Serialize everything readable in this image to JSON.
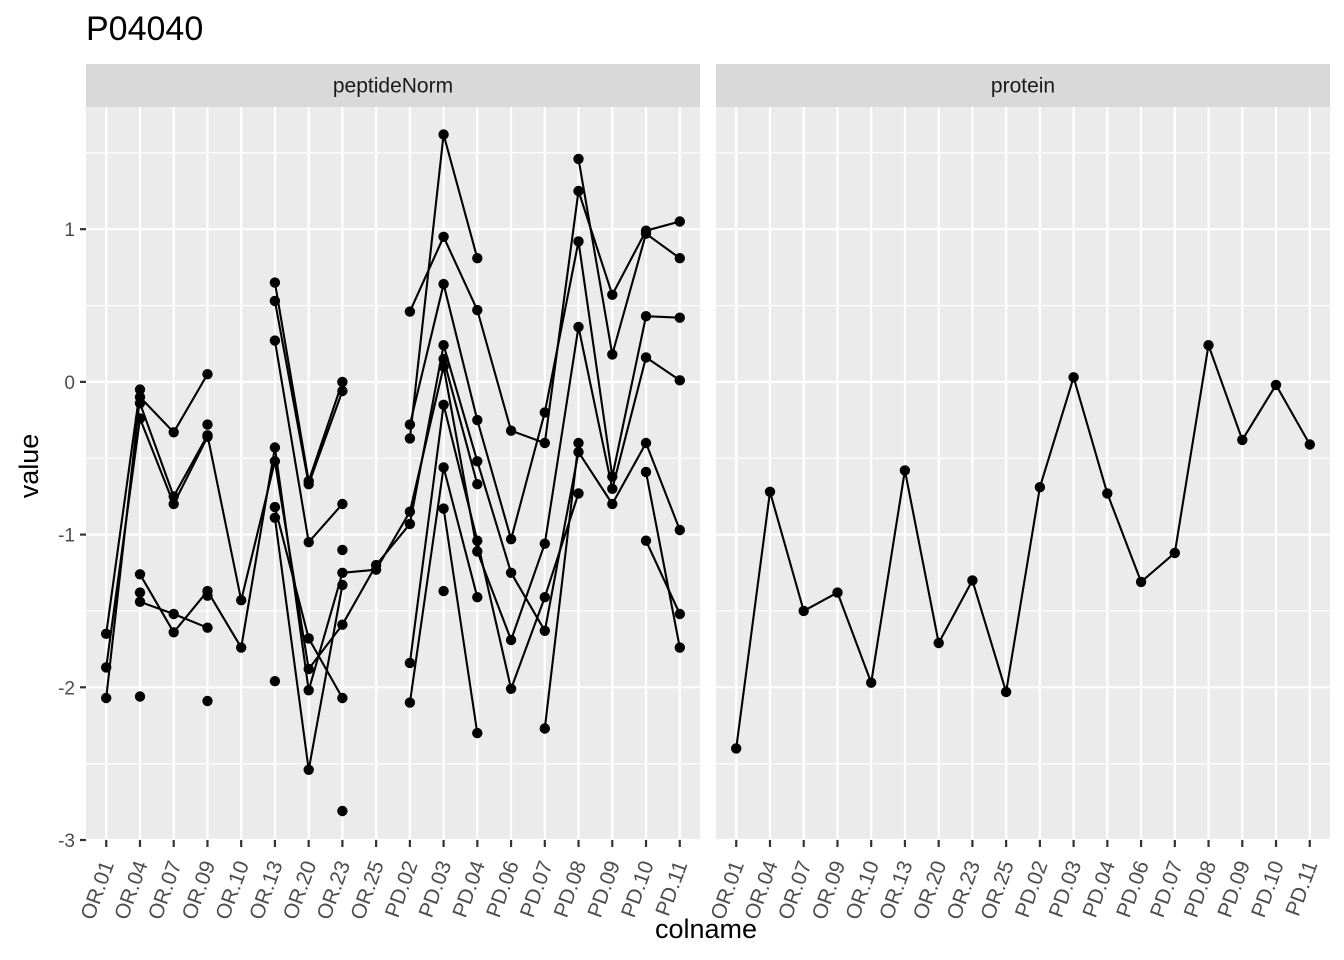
{
  "chart_data": {
    "type": "line",
    "title": "P04040",
    "xlabel": "colname",
    "ylabel": "value",
    "ylim": [
      -3,
      1.8
    ],
    "yticks": [
      -3,
      -2,
      -1,
      0,
      1
    ],
    "categories": [
      "OR.01",
      "OR.04",
      "OR.07",
      "OR.09",
      "OR.10",
      "OR.13",
      "OR.20",
      "OR.23",
      "OR.25",
      "PD.02",
      "PD.03",
      "PD.04",
      "PD.06",
      "PD.07",
      "PD.08",
      "PD.09",
      "PD.10",
      "PD.11"
    ],
    "grid": true,
    "panels": [
      {
        "name": "peptideNorm",
        "series": [
          {
            "values": [
              -1.65,
              -0.05,
              null,
              -0.28,
              null,
              0.65,
              -0.65,
              0.0,
              null,
              -0.37,
              1.62,
              0.81,
              null,
              null,
              1.46,
              0.18,
              0.97,
              0.81
            ]
          },
          {
            "values": [
              -2.07,
              -0.1,
              -0.33,
              0.05,
              null,
              0.53,
              -0.67,
              -0.06,
              null,
              0.46,
              0.95,
              0.47,
              -0.32,
              -0.4,
              1.25,
              0.57,
              0.99,
              1.05
            ]
          },
          {
            "values": [
              -1.87,
              -0.24,
              -0.8,
              -0.36,
              null,
              0.27,
              -1.05,
              -0.8,
              null,
              -0.28,
              0.64,
              -0.25,
              -1.03,
              -0.2,
              0.92,
              -0.62,
              0.43,
              0.42
            ]
          },
          {
            "values": [
              null,
              -0.14,
              -0.75,
              -0.35,
              -1.43,
              -0.52,
              -1.88,
              -1.59,
              -1.2,
              -0.93,
              0.24,
              -0.52,
              -1.25,
              -1.63,
              -0.46,
              -0.8,
              -0.4,
              -0.97
            ]
          },
          {
            "values": [
              null,
              -1.26,
              -1.64,
              -1.37,
              -1.74,
              -0.43,
              -2.02,
              -1.25,
              -1.23,
              -0.85,
              0.1,
              -1.11,
              -1.69,
              -1.06,
              0.36,
              -0.7,
              0.16,
              0.01
            ]
          },
          {
            "values": [
              null,
              -1.44,
              -1.52,
              -1.61,
              null,
              -0.82,
              -1.68,
              -2.07,
              null,
              -1.84,
              -0.15,
              -1.04,
              -2.01,
              -1.41,
              -0.73,
              null,
              -0.59,
              -1.74
            ]
          },
          {
            "values": [
              null,
              -1.38,
              null,
              -1.4,
              null,
              -0.89,
              -2.54,
              -1.33,
              null,
              -2.1,
              -0.56,
              -1.41,
              null,
              -2.27,
              -0.4,
              null,
              -1.04,
              -1.52
            ]
          },
          {
            "values": [
              null,
              -2.06,
              null,
              -2.09,
              null,
              -1.96,
              null,
              -1.1,
              null,
              null,
              -0.83,
              -2.3,
              null,
              null,
              null,
              null,
              null,
              null
            ]
          },
          {
            "values": [
              null,
              null,
              null,
              null,
              null,
              null,
              null,
              -2.81,
              null,
              null,
              0.15,
              -0.67,
              null,
              null,
              null,
              null,
              null,
              null
            ]
          },
          {
            "values": [
              null,
              null,
              null,
              null,
              null,
              null,
              null,
              null,
              null,
              null,
              -1.37,
              null,
              null,
              null,
              null,
              null,
              null,
              null
            ]
          }
        ]
      },
      {
        "name": "protein",
        "series": [
          {
            "values": [
              -2.4,
              -0.72,
              -1.5,
              -1.38,
              -1.97,
              -0.58,
              -1.71,
              -1.3,
              -2.03,
              -0.69,
              0.03,
              -0.73,
              -1.31,
              -1.12,
              0.24,
              -0.38,
              -0.02,
              -0.41
            ]
          }
        ]
      }
    ]
  }
}
